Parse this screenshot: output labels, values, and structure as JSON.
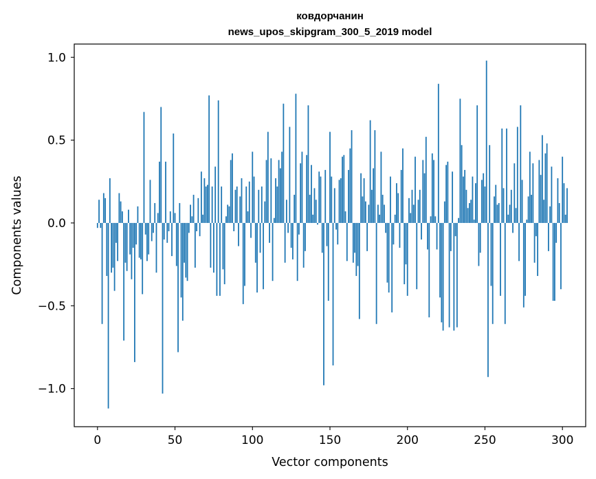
{
  "chart_data": {
    "type": "bar",
    "title_line1": "ковдорчанин",
    "title_line2": "news_upos_skipgram_300_5_2019 model",
    "xlabel": "Vector components",
    "ylabel": "Components values",
    "xlim": [
      -15,
      315
    ],
    "ylim": [
      -1.23,
      1.08
    ],
    "xticks": [
      0,
      50,
      100,
      150,
      200,
      250,
      300
    ],
    "xtick_labels": [
      "0",
      "50",
      "100",
      "150",
      "200",
      "250",
      "300"
    ],
    "yticks": [
      -1.0,
      -0.5,
      0.0,
      0.5,
      1.0
    ],
    "ytick_labels": [
      "−1.0",
      "−0.5",
      "0.0",
      "0.5",
      "1.0"
    ],
    "bar_color": "#1f77b4",
    "grid": false,
    "values": [
      -0.03,
      0.14,
      -0.03,
      -0.61,
      0.18,
      0.15,
      -0.32,
      -1.12,
      0.27,
      -0.3,
      -0.27,
      -0.41,
      -0.12,
      -0.23,
      0.18,
      0.13,
      0.07,
      -0.71,
      -0.24,
      -0.29,
      0.08,
      -0.19,
      -0.34,
      -0.15,
      -0.84,
      -0.13,
      0.1,
      -0.21,
      -0.22,
      -0.43,
      0.67,
      -0.07,
      -0.23,
      -0.19,
      0.26,
      -0.11,
      -0.06,
      0.12,
      -0.3,
      0.06,
      0.37,
      0.7,
      -1.03,
      -0.1,
      0.37,
      -0.12,
      -0.05,
      0.07,
      -0.2,
      0.54,
      0.06,
      -0.26,
      -0.78,
      0.12,
      -0.45,
      -0.59,
      -0.24,
      -0.33,
      -0.35,
      -0.06,
      0.11,
      0.04,
      0.17,
      -0.27,
      -0.05,
      0.15,
      -0.08,
      0.31,
      0.05,
      0.27,
      0.22,
      0.23,
      0.77,
      -0.27,
      0.22,
      -0.3,
      0.34,
      -0.44,
      0.74,
      -0.44,
      0.22,
      -0.28,
      -0.37,
      0.04,
      0.11,
      0.1,
      0.38,
      0.42,
      -0.05,
      0.2,
      0.22,
      -0.14,
      0.16,
      0.27,
      -0.49,
      -0.38,
      0.22,
      0.07,
      0.25,
      -0.09,
      0.43,
      0.28,
      -0.24,
      -0.42,
      0.2,
      -0.18,
      0.22,
      -0.4,
      0.13,
      0.38,
      0.55,
      -0.12,
      0.39,
      -0.35,
      0.03,
      0.27,
      0.22,
      0.38,
      0.33,
      0.43,
      0.72,
      -0.24,
      0.14,
      -0.06,
      0.58,
      -0.15,
      -0.22,
      0.17,
      0.78,
      -0.35,
      -0.07,
      0.36,
      0.43,
      -0.27,
      -0.17,
      0.41,
      0.71,
      0.17,
      0.35,
      0.05,
      0.21,
      0.14,
      -0.01,
      0.31,
      0.28,
      -0.18,
      -0.98,
      0.32,
      -0.14,
      -0.47,
      0.55,
      0.28,
      -0.86,
      0.21,
      -0.04,
      -0.13,
      0.26,
      0.27,
      0.4,
      0.41,
      0.07,
      -0.23,
      0.32,
      0.45,
      0.56,
      -0.24,
      -0.18,
      -0.32,
      -0.26,
      -0.58,
      0.3,
      0.16,
      0.27,
      0.13,
      -0.17,
      0.11,
      0.62,
      0.2,
      0.33,
      0.56,
      -0.61,
      0.11,
      0.05,
      0.43,
      0.17,
      0.11,
      -0.06,
      -0.36,
      -0.42,
      0.28,
      -0.54,
      -0.13,
      0.05,
      0.24,
      0.18,
      -0.15,
      0.32,
      0.45,
      -0.37,
      -0.25,
      -0.44,
      0.15,
      0.06,
      0.2,
      0.11,
      0.4,
      -0.4,
      0.14,
      0.2,
      -0.1,
      0.38,
      0.3,
      0.52,
      -0.16,
      -0.57,
      0.04,
      0.42,
      0.38,
      0.04,
      -0.16,
      0.84,
      -0.45,
      -0.6,
      -0.65,
      0.13,
      0.35,
      0.37,
      -0.63,
      -0.17,
      0.31,
      -0.65,
      -0.08,
      -0.63,
      0.03,
      0.75,
      0.47,
      0.28,
      0.32,
      0.2,
      0.09,
      0.12,
      0.14,
      0.28,
      0.02,
      0.24,
      0.71,
      -0.26,
      -0.18,
      0.26,
      0.3,
      0.22,
      0.98,
      -0.93,
      0.47,
      -0.38,
      -0.61,
      0.16,
      0.23,
      0.11,
      0.12,
      -0.44,
      0.57,
      0.21,
      -0.61,
      0.57,
      0.05,
      0.11,
      0.2,
      -0.06,
      0.36,
      0.09,
      0.58,
      -0.23,
      0.71,
      0.26,
      -0.51,
      -0.44,
      0.02,
      0.16,
      0.43,
      0.17,
      0.36,
      -0.24,
      -0.08,
      -0.32,
      0.38,
      0.29,
      0.53,
      0.14,
      0.42,
      0.48,
      -0.17,
      0.1,
      0.34,
      -0.47,
      -0.47,
      -0.12,
      0.27,
      0.12,
      -0.4,
      0.4,
      0.24,
      0.05,
      0.21
    ]
  }
}
